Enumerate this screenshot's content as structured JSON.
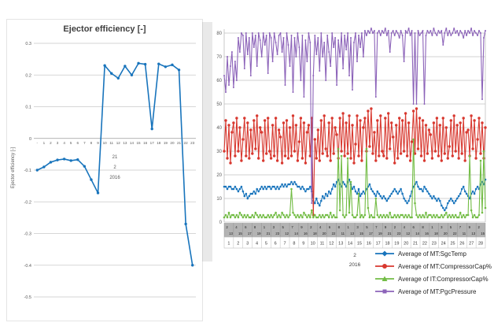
{
  "left_chart": {
    "title": "Ejector efficiency [-]",
    "y_axis_label": "Ejector efficiency [-]"
  },
  "right_chart": {
    "month_label": "2",
    "year_label": "2016",
    "legend": [
      {
        "label": "Average of MT:SgcTemp",
        "color": "#1874bc",
        "marker": "diamond"
      },
      {
        "label": "Average of MT:CompressorCap%",
        "color": "#d8382f",
        "marker": "circle"
      },
      {
        "label": "Average of IT:CompressorCap%",
        "color": "#72bc44",
        "marker": "triangle"
      },
      {
        "label": "Average of MT:PgcPressure",
        "color": "#8c63b9",
        "marker": "square"
      }
    ]
  },
  "chart_data": [
    {
      "type": "line",
      "title": "Ejector efficiency [-]",
      "ylabel": "Ejector efficiency [-]",
      "ylim": [
        -0.5,
        0.3
      ],
      "grid": true,
      "color": "#1874bc",
      "y_ticks": [
        0.3,
        0.2,
        0.1,
        0,
        -0.1,
        -0.2,
        -0.3,
        -0.4,
        -0.5
      ],
      "y_tick_labels": [
        "0.3",
        "0.2",
        "0.1",
        "0",
        "-0.1",
        "-0.2",
        "-0.3",
        "-0.4",
        "-0.5"
      ],
      "categories": [
        "-",
        "1",
        "2",
        "3",
        "4",
        "5",
        "6",
        "7",
        "8",
        "9",
        "10",
        "11",
        "12",
        "13",
        "14",
        "15",
        "16",
        "17",
        "18",
        "19",
        "20",
        "21",
        "22",
        "23"
      ],
      "x_group_labels": [
        "21",
        "2",
        "2016"
      ],
      "values": [
        -0.1,
        -0.09,
        -0.075,
        -0.068,
        -0.065,
        -0.07,
        -0.067,
        -0.088,
        -0.13,
        -0.172,
        0.23,
        0.205,
        0.19,
        0.228,
        0.2,
        0.237,
        0.234,
        0.03,
        0.235,
        0.226,
        0.232,
        0.216,
        -0.27,
        -0.4
      ]
    },
    {
      "type": "line",
      "title": "",
      "ylim": [
        0,
        85
      ],
      "grid": true,
      "legend_position": "bottom-right",
      "y_ticks": [
        0,
        10,
        20,
        30,
        40,
        50,
        60,
        70,
        80
      ],
      "x_axis": {
        "days": [
          "1",
          "2",
          "3",
          "4",
          "5",
          "6",
          "7",
          "8",
          "9",
          "10",
          "11",
          "12",
          "13",
          "14",
          "15",
          "16",
          "17",
          "18",
          "19",
          "20",
          "21",
          "22",
          "23",
          "24",
          "25",
          "26",
          "27",
          "28"
        ],
        "month": "2",
        "year": "2016",
        "samples_per_day": 6,
        "hour_row_top": [
          "2",
          "4",
          "6",
          "8",
          "1",
          "3",
          "5",
          "7",
          "9",
          "2",
          "4",
          "6",
          "8",
          "1",
          "3",
          "5",
          "7",
          "9",
          "2",
          "4",
          "6",
          "8",
          "1",
          "3",
          "5",
          "7",
          "9",
          "2"
        ],
        "hour_row_bottom": [
          "13",
          "15",
          "17",
          "19",
          "21",
          "23",
          "12",
          "14",
          "16",
          "18",
          "20",
          "22",
          "11",
          "13",
          "15",
          "17",
          "19",
          "21",
          "23",
          "12",
          "14",
          "16",
          "18",
          "20",
          "22",
          "11",
          "13",
          "15"
        ]
      },
      "series": [
        {
          "name": "Average of MT:SgcTemp",
          "color": "#1874bc",
          "values": [
            15,
            15,
            14,
            15,
            15,
            14,
            14,
            15,
            14,
            13,
            14,
            15,
            13,
            11,
            12,
            10,
            11,
            12,
            12,
            13,
            12,
            14,
            13,
            14,
            15,
            14,
            15,
            14,
            15,
            15,
            14,
            15,
            15,
            14,
            15,
            14,
            15,
            16,
            15,
            16,
            15,
            16,
            16,
            17,
            16,
            17,
            16,
            15,
            15,
            14,
            15,
            14,
            13,
            14,
            14,
            15,
            13,
            9,
            8,
            10,
            8,
            7,
            9,
            11,
            10,
            12,
            11,
            13,
            12,
            14,
            16,
            15,
            17,
            18,
            16,
            15,
            17,
            16,
            15,
            17,
            18,
            16,
            14,
            15,
            13,
            12,
            14,
            11,
            12,
            13,
            12,
            14,
            15,
            16,
            14,
            13,
            12,
            11,
            13,
            12,
            11,
            10,
            11,
            10,
            9,
            10,
            11,
            12,
            13,
            14,
            13,
            12,
            13,
            14,
            12,
            10,
            9,
            8,
            9,
            11,
            13,
            15,
            16,
            17,
            15,
            14,
            14,
            13,
            15,
            14,
            13,
            12,
            11,
            10,
            11,
            10,
            9,
            10,
            9,
            7,
            6,
            5,
            6,
            8,
            9,
            10,
            9,
            8,
            9,
            10,
            11,
            12,
            14,
            15,
            13,
            12,
            11,
            10,
            12,
            13,
            12,
            14,
            15,
            14,
            16,
            17,
            16,
            18
          ]
        },
        {
          "name": "Average of MT:CompressorCap%",
          "color": "#d8382f",
          "values": [
            30,
            43,
            27,
            41,
            25,
            38,
            42,
            28,
            44,
            30,
            40,
            26,
            35,
            44,
            28,
            42,
            27,
            39,
            29,
            43,
            31,
            45,
            27,
            40,
            38,
            26,
            43,
            29,
            44,
            30,
            27,
            41,
            28,
            44,
            26,
            39,
            36,
            25,
            42,
            28,
            43,
            27,
            40,
            28,
            45,
            30,
            41,
            26,
            34,
            44,
            27,
            42,
            25,
            38,
            41,
            28,
            44,
            3,
            35,
            27,
            39,
            26,
            43,
            29,
            45,
            31,
            28,
            42,
            26,
            44,
            29,
            40,
            37,
            27,
            44,
            30,
            46,
            28,
            42,
            29,
            45,
            27,
            41,
            25,
            33,
            45,
            28,
            43,
            26,
            40,
            44,
            30,
            47,
            32,
            48,
            29,
            38,
            26,
            43,
            28,
            45,
            30,
            28,
            44,
            27,
            46,
            31,
            42,
            36,
            25,
            41,
            27,
            44,
            29,
            43,
            30,
            46,
            28,
            42,
            26,
            34,
            47,
            29,
            48,
            31,
            44,
            28,
            43,
            26,
            41,
            29,
            39,
            37,
            27,
            42,
            30,
            44,
            28,
            41,
            26,
            44,
            29,
            40,
            27,
            32,
            43,
            28,
            45,
            30,
            41,
            27,
            42,
            29,
            44,
            26,
            38,
            39,
            28,
            45,
            31,
            43,
            27,
            35,
            44,
            29,
            42,
            27,
            40
          ]
        },
        {
          "name": "Average of IT:CompressorCap%",
          "color": "#72bc44",
          "values": [
            2,
            3,
            2,
            4,
            2,
            3,
            3,
            2,
            3,
            2,
            4,
            3,
            2,
            3,
            2,
            3,
            2,
            2,
            3,
            2,
            4,
            3,
            2,
            3,
            2,
            3,
            2,
            2,
            3,
            2,
            3,
            2,
            3,
            4,
            2,
            3,
            2,
            4,
            3,
            2,
            3,
            2,
            3,
            14,
            4,
            3,
            2,
            3,
            2,
            3,
            2,
            4,
            3,
            2,
            3,
            2,
            5,
            2,
            3,
            2,
            2,
            3,
            2,
            3,
            2,
            3,
            3,
            2,
            4,
            2,
            3,
            2,
            2,
            31,
            5,
            28,
            3,
            2,
            3,
            27,
            4,
            17,
            3,
            2,
            2,
            3,
            12,
            2,
            3,
            2,
            3,
            31,
            6,
            2,
            3,
            2,
            2,
            10,
            3,
            2,
            3,
            2,
            3,
            2,
            3,
            2,
            4,
            2,
            2,
            3,
            2,
            3,
            2,
            3,
            3,
            2,
            3,
            2,
            3,
            2,
            2,
            35,
            8,
            3,
            2,
            3,
            2,
            3,
            2,
            4,
            2,
            3,
            3,
            2,
            3,
            2,
            3,
            2,
            2,
            3,
            2,
            3,
            4,
            2,
            3,
            2,
            3,
            2,
            3,
            2,
            2,
            4,
            2,
            3,
            2,
            3,
            3,
            28,
            5,
            2,
            3,
            2,
            2,
            3,
            26,
            4,
            30,
            6
          ]
        },
        {
          "name": "Average of MT:PgcPressure",
          "color": "#8c63b9",
          "values": [
            62,
            55,
            70,
            58,
            66,
            72,
            57,
            68,
            60,
            78,
            72,
            80,
            79,
            65,
            80,
            71,
            78,
            62,
            80,
            74,
            79,
            66,
            80,
            77,
            70,
            80,
            75,
            79,
            63,
            80,
            78,
            68,
            80,
            76,
            71,
            79,
            80,
            72,
            78,
            58,
            80,
            75,
            66,
            79,
            55,
            78,
            70,
            80,
            74,
            60,
            79,
            53,
            77,
            68,
            80,
            76,
            8,
            62,
            79,
            71,
            78,
            64,
            80,
            70,
            76,
            60,
            79,
            72,
            66,
            80,
            74,
            78,
            58,
            77,
            70,
            80,
            65,
            79,
            73,
            80,
            62,
            78,
            56,
            76,
            80,
            68,
            79,
            74,
            80,
            70,
            81,
            79,
            81,
            80,
            82,
            80,
            81,
            53,
            80,
            81,
            79,
            81,
            80,
            82,
            79,
            81,
            72,
            80,
            81,
            79,
            81,
            80,
            78,
            81,
            79,
            68,
            81,
            80,
            82,
            79,
            81,
            50,
            80,
            50,
            81,
            79,
            80,
            81,
            50,
            79,
            81,
            80,
            81,
            79,
            82,
            80,
            79,
            81,
            80,
            81,
            75,
            80,
            82,
            79,
            81,
            79,
            80,
            82,
            80,
            81,
            79,
            81,
            80,
            78,
            81,
            79,
            81,
            80,
            82,
            79,
            81,
            80,
            79,
            81,
            80,
            52,
            78,
            81
          ]
        }
      ]
    }
  ]
}
